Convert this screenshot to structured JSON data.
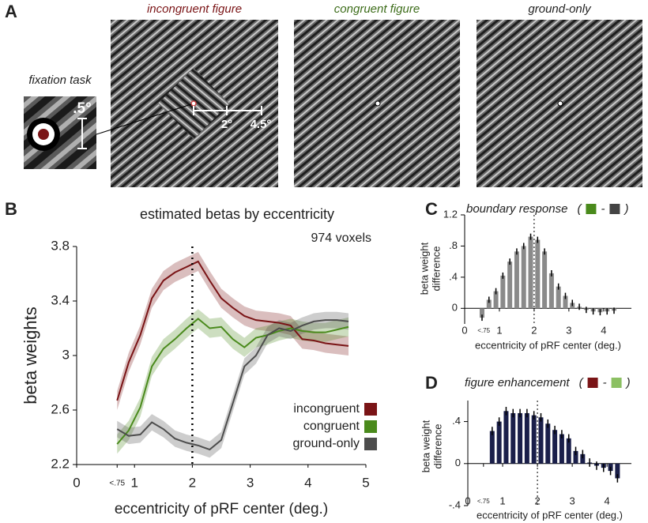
{
  "panel_labels": [
    "A",
    "B",
    "C",
    "D"
  ],
  "stimuli": {
    "titles": [
      "incongruent figure",
      "congruent figure",
      "ground-only"
    ],
    "fixation_label": "fixation task",
    "fixation_size": ".5°",
    "scale_labels": [
      "2°",
      "4.5°"
    ]
  },
  "chart_data": [
    {
      "type": "line",
      "title": "estimated betas by eccentricity",
      "annotation": "974 voxels",
      "xlabel": "eccentricity of pRF center (deg.)",
      "ylabel": "beta weights",
      "x": [
        0.7,
        0.9,
        1.1,
        1.3,
        1.5,
        1.7,
        1.9,
        2.1,
        2.3,
        2.5,
        2.7,
        2.9,
        3.1,
        3.3,
        3.5,
        3.7,
        3.9,
        4.1,
        4.3,
        4.5,
        4.7
      ],
      "series": [
        {
          "name": "incongruent",
          "color": "#7a1416",
          "error": 0.07,
          "values": [
            2.67,
            2.95,
            3.15,
            3.42,
            3.55,
            3.61,
            3.65,
            3.69,
            3.55,
            3.42,
            3.35,
            3.29,
            3.26,
            3.25,
            3.24,
            3.22,
            3.12,
            3.11,
            3.09,
            3.08,
            3.07
          ]
        },
        {
          "name": "congruent",
          "color": "#4a8a1c",
          "error": 0.07,
          "values": [
            2.35,
            2.45,
            2.62,
            2.92,
            3.05,
            3.12,
            3.2,
            3.27,
            3.2,
            3.21,
            3.12,
            3.06,
            3.13,
            3.15,
            3.18,
            3.2,
            3.18,
            3.17,
            3.17,
            3.19,
            3.21
          ]
        },
        {
          "name": "ground-only",
          "color": "#4d4d4d",
          "error": 0.06,
          "values": [
            2.46,
            2.41,
            2.42,
            2.51,
            2.46,
            2.39,
            2.36,
            2.34,
            2.31,
            2.38,
            2.65,
            2.92,
            3.0,
            3.15,
            3.2,
            3.18,
            3.22,
            3.25,
            3.26,
            3.26,
            3.25
          ]
        }
      ],
      "xlim": [
        0,
        5
      ],
      "ylim": [
        2.2,
        3.8
      ],
      "xticks": [
        0,
        {
          "value": 0.7,
          "label": "<.75"
        },
        1,
        2,
        3,
        4,
        5
      ],
      "yticks": [
        2.2,
        2.6,
        3,
        3.4,
        3.8
      ],
      "reference_x": 2,
      "legend": "lower-right"
    },
    {
      "type": "bar",
      "title": "boundary response",
      "formula": [
        "(",
        "-",
        ")"
      ],
      "formula_colors": [
        "#4a8a1c",
        "#444444"
      ],
      "xlabel": "eccentricity of pRF center (deg.)",
      "ylabel": [
        "beta weight",
        "difference"
      ],
      "x": [
        0.5,
        0.7,
        0.9,
        1.1,
        1.3,
        1.5,
        1.7,
        1.9,
        2.1,
        2.3,
        2.5,
        2.7,
        2.9,
        3.1,
        3.3,
        3.5,
        3.7,
        3.9,
        4.1,
        4.3
      ],
      "values": [
        -0.12,
        0.11,
        0.22,
        0.42,
        0.6,
        0.73,
        0.8,
        0.92,
        0.88,
        0.73,
        0.45,
        0.28,
        0.16,
        0.07,
        0.02,
        -0.02,
        -0.04,
        -0.05,
        -0.04,
        -0.03
      ],
      "error": 0.04,
      "color": "#8a8a8a",
      "xlim": [
        0,
        4.8
      ],
      "ylim": [
        -0.2,
        1.2
      ],
      "xticks": [
        0,
        {
          "value": 0.55,
          "label": "<.75"
        },
        1,
        2,
        3,
        4
      ],
      "yticks": [
        0,
        {
          "value": 0.4,
          "label": ".4"
        },
        {
          "value": 0.8,
          "label": ".8"
        },
        1.2
      ],
      "reference_x": 2
    },
    {
      "type": "bar",
      "title": "figure enhancement",
      "formula": [
        "(",
        "-",
        ")"
      ],
      "formula_colors": [
        "#7a1416",
        "#8cc063"
      ],
      "xlabel": "eccentricity of pRF center (deg.)",
      "ylabel": [
        "beta weight",
        "difference"
      ],
      "x": [
        0.7,
        0.9,
        1.1,
        1.3,
        1.5,
        1.7,
        1.9,
        2.1,
        2.3,
        2.5,
        2.7,
        2.9,
        3.1,
        3.3,
        3.5,
        3.7,
        3.9,
        4.1,
        4.3
      ],
      "values": [
        0.31,
        0.4,
        0.5,
        0.48,
        0.48,
        0.48,
        0.46,
        0.44,
        0.38,
        0.32,
        0.28,
        0.24,
        0.12,
        0.09,
        0.01,
        -0.02,
        -0.04,
        -0.07,
        -0.14
      ],
      "error": 0.04,
      "color": "#1a1f4a",
      "xlim": [
        0,
        4.7
      ],
      "ylim": [
        -0.4,
        0.6
      ],
      "xticks": [
        0,
        {
          "value": 0.45,
          "label": "<.75"
        },
        1,
        2,
        3,
        4
      ],
      "yticks": [
        {
          "value": -0.4,
          "label": "-.4"
        },
        0,
        {
          "value": 0.4,
          "label": ".4"
        }
      ],
      "reference_x": 2
    }
  ]
}
